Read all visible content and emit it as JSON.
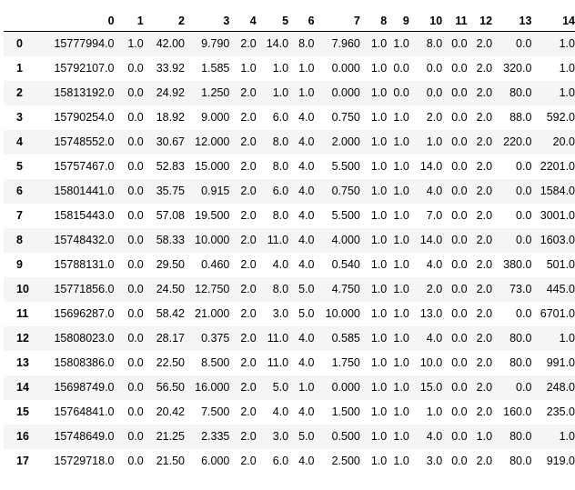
{
  "table": {
    "index_header": "",
    "columns": [
      "0",
      "1",
      "2",
      "3",
      "4",
      "5",
      "6",
      "7",
      "8",
      "9",
      "10",
      "11",
      "12",
      "13",
      "14"
    ],
    "rows": [
      {
        "index": "0",
        "cells": [
          "15777994.0",
          "1.0",
          "42.00",
          "9.790",
          "2.0",
          "14.0",
          "8.0",
          "7.960",
          "1.0",
          "1.0",
          "8.0",
          "0.0",
          "2.0",
          "0.0",
          "1.0"
        ]
      },
      {
        "index": "1",
        "cells": [
          "15792107.0",
          "0.0",
          "33.92",
          "1.585",
          "1.0",
          "1.0",
          "1.0",
          "0.000",
          "1.0",
          "0.0",
          "0.0",
          "0.0",
          "2.0",
          "320.0",
          "1.0"
        ]
      },
      {
        "index": "2",
        "cells": [
          "15813192.0",
          "0.0",
          "24.92",
          "1.250",
          "2.0",
          "1.0",
          "1.0",
          "0.000",
          "1.0",
          "0.0",
          "0.0",
          "0.0",
          "2.0",
          "80.0",
          "1.0"
        ]
      },
      {
        "index": "3",
        "cells": [
          "15790254.0",
          "0.0",
          "18.92",
          "9.000",
          "2.0",
          "6.0",
          "4.0",
          "0.750",
          "1.0",
          "1.0",
          "2.0",
          "0.0",
          "2.0",
          "88.0",
          "592.0"
        ]
      },
      {
        "index": "4",
        "cells": [
          "15748552.0",
          "0.0",
          "30.67",
          "12.000",
          "2.0",
          "8.0",
          "4.0",
          "2.000",
          "1.0",
          "1.0",
          "1.0",
          "0.0",
          "2.0",
          "220.0",
          "20.0"
        ]
      },
      {
        "index": "5",
        "cells": [
          "15757467.0",
          "0.0",
          "52.83",
          "15.000",
          "2.0",
          "8.0",
          "4.0",
          "5.500",
          "1.0",
          "1.0",
          "14.0",
          "0.0",
          "2.0",
          "0.0",
          "2201.0"
        ]
      },
      {
        "index": "6",
        "cells": [
          "15801441.0",
          "0.0",
          "35.75",
          "0.915",
          "2.0",
          "6.0",
          "4.0",
          "0.750",
          "1.0",
          "1.0",
          "4.0",
          "0.0",
          "2.0",
          "0.0",
          "1584.0"
        ]
      },
      {
        "index": "7",
        "cells": [
          "15815443.0",
          "0.0",
          "57.08",
          "19.500",
          "2.0",
          "8.0",
          "4.0",
          "5.500",
          "1.0",
          "1.0",
          "7.0",
          "0.0",
          "2.0",
          "0.0",
          "3001.0"
        ]
      },
      {
        "index": "8",
        "cells": [
          "15748432.0",
          "0.0",
          "58.33",
          "10.000",
          "2.0",
          "11.0",
          "4.0",
          "4.000",
          "1.0",
          "1.0",
          "14.0",
          "0.0",
          "2.0",
          "0.0",
          "1603.0"
        ]
      },
      {
        "index": "9",
        "cells": [
          "15788131.0",
          "0.0",
          "29.50",
          "0.460",
          "2.0",
          "4.0",
          "4.0",
          "0.540",
          "1.0",
          "1.0",
          "4.0",
          "0.0",
          "2.0",
          "380.0",
          "501.0"
        ]
      },
      {
        "index": "10",
        "cells": [
          "15771856.0",
          "0.0",
          "24.50",
          "12.750",
          "2.0",
          "8.0",
          "5.0",
          "4.750",
          "1.0",
          "1.0",
          "2.0",
          "0.0",
          "2.0",
          "73.0",
          "445.0"
        ]
      },
      {
        "index": "11",
        "cells": [
          "15696287.0",
          "0.0",
          "58.42",
          "21.000",
          "2.0",
          "3.0",
          "5.0",
          "10.000",
          "1.0",
          "1.0",
          "13.0",
          "0.0",
          "2.0",
          "0.0",
          "6701.0"
        ]
      },
      {
        "index": "12",
        "cells": [
          "15808023.0",
          "0.0",
          "28.17",
          "0.375",
          "2.0",
          "11.0",
          "4.0",
          "0.585",
          "1.0",
          "1.0",
          "4.0",
          "0.0",
          "2.0",
          "80.0",
          "1.0"
        ]
      },
      {
        "index": "13",
        "cells": [
          "15808386.0",
          "0.0",
          "22.50",
          "8.500",
          "2.0",
          "11.0",
          "4.0",
          "1.750",
          "1.0",
          "1.0",
          "10.0",
          "0.0",
          "2.0",
          "80.0",
          "991.0"
        ]
      },
      {
        "index": "14",
        "cells": [
          "15698749.0",
          "0.0",
          "56.50",
          "16.000",
          "2.0",
          "5.0",
          "1.0",
          "0.000",
          "1.0",
          "1.0",
          "15.0",
          "0.0",
          "2.0",
          "0.0",
          "248.0"
        ]
      },
      {
        "index": "15",
        "cells": [
          "15764841.0",
          "0.0",
          "20.42",
          "7.500",
          "2.0",
          "4.0",
          "4.0",
          "1.500",
          "1.0",
          "1.0",
          "1.0",
          "0.0",
          "2.0",
          "160.0",
          "235.0"
        ]
      },
      {
        "index": "16",
        "cells": [
          "15748649.0",
          "0.0",
          "21.25",
          "2.335",
          "2.0",
          "3.0",
          "5.0",
          "0.500",
          "1.0",
          "1.0",
          "4.0",
          "0.0",
          "1.0",
          "80.0",
          "1.0"
        ]
      },
      {
        "index": "17",
        "cells": [
          "15729718.0",
          "0.0",
          "21.50",
          "6.000",
          "2.0",
          "6.0",
          "4.0",
          "2.500",
          "1.0",
          "1.0",
          "3.0",
          "0.0",
          "2.0",
          "80.0",
          "919.0"
        ]
      }
    ]
  }
}
